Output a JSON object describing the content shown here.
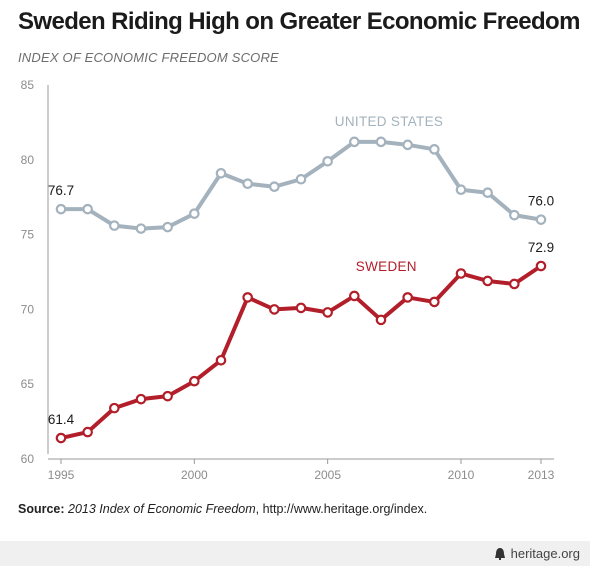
{
  "header": {
    "title": "Sweden Riding High on Greater Economic Freedom",
    "subtitle": "INDEX OF ECONOMIC FREEDOM SCORE"
  },
  "source": {
    "label": "Source:",
    "publication": "2013 Index of Economic Freedom",
    "rest": ", http://www.heritage.org/index."
  },
  "footer": {
    "brand": "heritage.org"
  },
  "colors": {
    "us": "#a3b2bd",
    "sweden": "#b21f2a",
    "axis": "#9a9a9a",
    "tick_text": "#8c8c8c"
  },
  "chart_data": {
    "type": "line",
    "x": [
      1995,
      1996,
      1997,
      1998,
      1999,
      2000,
      2001,
      2002,
      2003,
      2004,
      2005,
      2006,
      2007,
      2008,
      2009,
      2010,
      2011,
      2012,
      2013
    ],
    "xticks": [
      "1995",
      "2000",
      "2005",
      "2010",
      "2013"
    ],
    "yticks": [
      "60",
      "65",
      "70",
      "75",
      "80",
      "85"
    ],
    "xlim": [
      1995,
      2013
    ],
    "ylim": [
      60,
      85
    ],
    "grid": false,
    "series": [
      {
        "name": "UNITED STATES",
        "values": [
          76.7,
          76.7,
          75.6,
          75.4,
          75.5,
          76.4,
          79.1,
          78.4,
          78.2,
          78.7,
          79.9,
          81.2,
          81.2,
          81.0,
          80.7,
          78.0,
          77.8,
          76.3,
          76.0
        ]
      },
      {
        "name": "SWEDEN",
        "values": [
          61.4,
          61.8,
          63.4,
          64.0,
          64.2,
          65.2,
          66.6,
          70.8,
          70.0,
          70.1,
          69.8,
          70.9,
          69.3,
          70.8,
          70.5,
          72.4,
          71.9,
          71.7,
          72.9
        ]
      }
    ],
    "annotations": [
      {
        "series": 0,
        "index": 0,
        "text": "76.7"
      },
      {
        "series": 0,
        "index": 18,
        "text": "76.0"
      },
      {
        "series": 1,
        "index": 0,
        "text": "61.4"
      },
      {
        "series": 1,
        "index": 18,
        "text": "72.9"
      }
    ]
  }
}
